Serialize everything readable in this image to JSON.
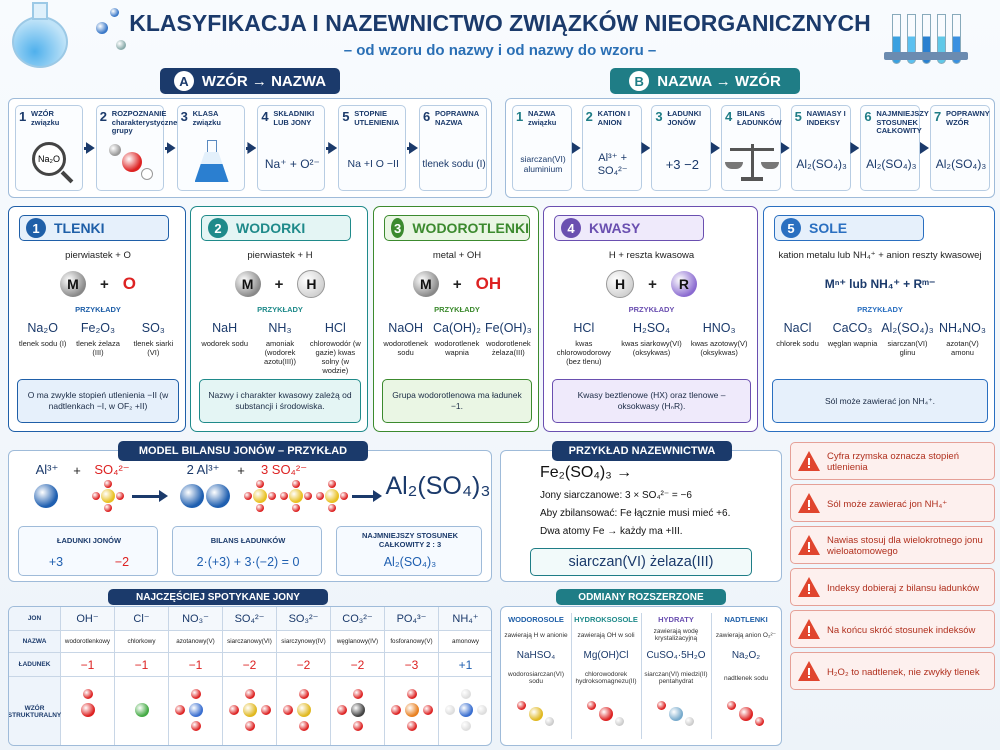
{
  "header": {
    "title": "KLASYFIKACJA I NAZEWNICTWO ZWIĄZKÓW NIEORGANICZNYCH",
    "subtitle": "– od wzoru do nazwy i od nazwy do wzoru –"
  },
  "section_a": {
    "badge": "A",
    "title": "WZÓR → NAZWA",
    "steps": [
      {
        "number": "1",
        "label": "WZÓR związku",
        "content": "Na₂O"
      },
      {
        "number": "2",
        "label": "ROZPOZNANIE charakterystycznej grupy"
      },
      {
        "number": "3",
        "label": "KLASA związku"
      },
      {
        "number": "4",
        "label": "SKŁADNIKI LUB JONY",
        "content": "Na⁺ + O²⁻"
      },
      {
        "number": "5",
        "label": "STOPNIE UTLENIENIA",
        "content": "Na +I  O −II"
      },
      {
        "number": "6",
        "label": "POPRAWNA NAZWA",
        "content": "tlenek sodu (I)"
      }
    ]
  },
  "section_b": {
    "badge": "B",
    "title": "NAZWA → WZÓR",
    "steps": [
      {
        "number": "1",
        "label": "NAZWA związku",
        "content": "siarczan(VI) aluminium"
      },
      {
        "number": "2",
        "label": "KATION I ANION",
        "content": "Al³⁺ + SO₄²⁻"
      },
      {
        "number": "3",
        "label": "ŁADUNKI JONÓW",
        "content": "+3  −2"
      },
      {
        "number": "4",
        "label": "BILANS ŁADUNKÓW"
      },
      {
        "number": "5",
        "label": "NAWIASY I INDEKSY",
        "content": "Al₂(SO₄)₃"
      },
      {
        "number": "6",
        "label": "NAJMNIEJSZY STOSUNEK CAŁKOWITY",
        "content": "Al₂(SO₄)₃"
      },
      {
        "number": "7",
        "label": "POPRAWNY WZÓR",
        "content": "Al₂(SO₄)₃"
      }
    ]
  },
  "classes": [
    {
      "number": "1",
      "title": "TLENKI",
      "description": "pierwiastek + O",
      "scheme": [
        "M",
        "+",
        "O"
      ],
      "examples_label": "PRZYKŁADY",
      "examples": [
        {
          "formula": "Na₂O",
          "name": "tlenek sodu (I)"
        },
        {
          "formula": "Fe₂O₃",
          "name": "tlenek żelaza (III)"
        },
        {
          "formula": "SO₃",
          "name": "tlenek siarki (VI)"
        }
      ],
      "note": "O ma zwykle stopień utlenienia −II (w nadtlenkach −I, w OF₂ +II)"
    },
    {
      "number": "2",
      "title": "WODORKI",
      "description": "pierwiastek + H",
      "scheme": [
        "M",
        "+",
        "H"
      ],
      "examples_label": "PRZYKŁADY",
      "examples": [
        {
          "formula": "NaH",
          "name": "wodorek sodu"
        },
        {
          "formula": "NH₃",
          "name": "amoniak (wodorek azotu(III))"
        },
        {
          "formula": "HCl",
          "name": "chlorowodór (w gazie) kwas solny (w wodzie)"
        }
      ],
      "note": "Nazwy i charakter kwasowy zależą od substancji i środowiska."
    },
    {
      "number": "3",
      "title": "WODOROTLENKI",
      "description": "metal + OH",
      "scheme": [
        "M",
        "+",
        "OH"
      ],
      "examples_label": "PRZYKŁADY",
      "examples": [
        {
          "formula": "NaOH",
          "name": "wodorotlenek sodu"
        },
        {
          "formula": "Ca(OH)₂",
          "name": "wodorotlenek wapnia"
        },
        {
          "formula": "Fe(OH)₃",
          "name": "wodorotlenek żelaza(III)"
        }
      ],
      "note": "Grupa wodorotlenowa ma ładunek −1."
    },
    {
      "number": "4",
      "title": "KWASY",
      "description": "H + reszta kwasowa",
      "scheme": [
        "H",
        "+",
        "R"
      ],
      "examples_label": "PRZYKŁADY",
      "examples": [
        {
          "formula": "HCl",
          "name": "kwas chlorowodorowy (bez tlenu)"
        },
        {
          "formula": "H₂SO₄",
          "name": "kwas siarkowy(VI) (oksykwas)"
        },
        {
          "formula": "HNO₃",
          "name": "kwas azotowy(V) (oksykwas)"
        }
      ],
      "note": "Kwasy beztlenowe (HX) oraz tlenowe – oksokwasy (HₙR)."
    },
    {
      "number": "5",
      "title": "SOLE",
      "description": "kation metalu lub NH₄⁺ + anion reszty kwasowej",
      "scheme": "Mⁿ⁺ lub NH₄⁺ + Rᵐ⁻",
      "examples_label": "PRZYKŁADY",
      "examples": [
        {
          "formula": "NaCl",
          "name": "chlorek sodu"
        },
        {
          "formula": "CaCO₃",
          "name": "węglan wapnia"
        },
        {
          "formula": "Al₂(SO₄)₃",
          "name": "siarczan(VI) glinu"
        },
        {
          "formula": "NH₄NO₃",
          "name": "azotan(V) amonu"
        }
      ],
      "note": "Sól może zawierać jon NH₄⁺."
    }
  ],
  "ion_model": {
    "title": "MODEL BILANSU JONÓW – PRZYKŁAD",
    "left_ions": [
      "Al³⁺",
      "+",
      "SO₄²⁻"
    ],
    "right_ions": [
      "2 Al³⁺",
      "+",
      "3 SO₄²⁻"
    ],
    "result": "Al₂(SO₄)₃",
    "boxes": [
      {
        "title": "ŁADUNKI JONÓW",
        "values": [
          "+3",
          "−2"
        ]
      },
      {
        "title": "BILANS ŁADUNKÓW",
        "values": [
          "2·(+3) + 3·(−2) = 0"
        ]
      },
      {
        "title": "NAJMNIEJSZY STOSUNEK CAŁKOWITY 2 : 3",
        "values": [
          "Al₂(SO₄)₃"
        ]
      }
    ]
  },
  "naming": {
    "title": "PRZYKŁAD NAZEWNICTWA",
    "formula": "Fe₂(SO₄)₃ →",
    "lines": [
      "Jony siarczanowe: 3 × SO₄²⁻ = −6",
      "Aby zbilansować: Fe łącznie musi mieć +6.",
      "Dwa atomy Fe → każdy ma +III."
    ],
    "result": "siarczan(VI) żelaza(III)"
  },
  "warnings": [
    "Cyfra rzymska oznacza stopień utlenienia",
    "Sól może zawierać jon NH₄⁺",
    "Nawias stosuj dla wielokrotnego jonu wieloatomowego",
    "Indeksy dobieraj z bilansu ładunków",
    "Na końcu skróć stosunek indeksów",
    "H₂O₂ to nadtlenek, nie zwykły tlenek"
  ],
  "ions_table": {
    "title": "NAJCZĘŚCIEJ SPOTYKANE JONY",
    "row_headers": [
      "JON",
      "NAZWA",
      "ŁADUNEK",
      "WZÓR STRUKTURALNY"
    ],
    "columns": [
      {
        "ion": "OH⁻",
        "name": "wodorotlenkowy",
        "charge": "−1"
      },
      {
        "ion": "Cl⁻",
        "name": "chlorkowy",
        "charge": "−1"
      },
      {
        "ion": "NO₃⁻",
        "name": "azotanowy(V)",
        "charge": "−1"
      },
      {
        "ion": "SO₄²⁻",
        "name": "siarczanowy(VI)",
        "charge": "−2"
      },
      {
        "ion": "SO₃²⁻",
        "name": "siarczynowy(IV)",
        "charge": "−2"
      },
      {
        "ion": "CO₃²⁻",
        "name": "węglanowy(IV)",
        "charge": "−2"
      },
      {
        "ion": "PO₄³⁻",
        "name": "fosforanowy(V)",
        "charge": "−3"
      },
      {
        "ion": "NH₄⁺",
        "name": "amonowy",
        "charge": "+1"
      }
    ]
  },
  "extended": {
    "title": "ODMIANY ROZSZERZONE",
    "items": [
      {
        "title": "WODOROSOLE",
        "description": "zawierają H w anionie",
        "formula": "NaHSO₄",
        "name": "wodorosiarczan(VI) sodu"
      },
      {
        "title": "HYDROKSOSOLE",
        "description": "zawierają OH w soli",
        "formula": "Mg(OH)Cl",
        "name": "chlorowodorek hydroksomagnezu(II)"
      },
      {
        "title": "HYDRATY",
        "description": "zawierają wodę krystalizacyjną",
        "formula": "CuSO₄·5H₂O",
        "name": "siarczan(VI) miedzi(II) pentahydrat"
      },
      {
        "title": "NADTLENKI",
        "description": "zawierają anion O₂²⁻",
        "formula": "Na₂O₂",
        "name": "nadtlenek sodu"
      }
    ]
  }
}
